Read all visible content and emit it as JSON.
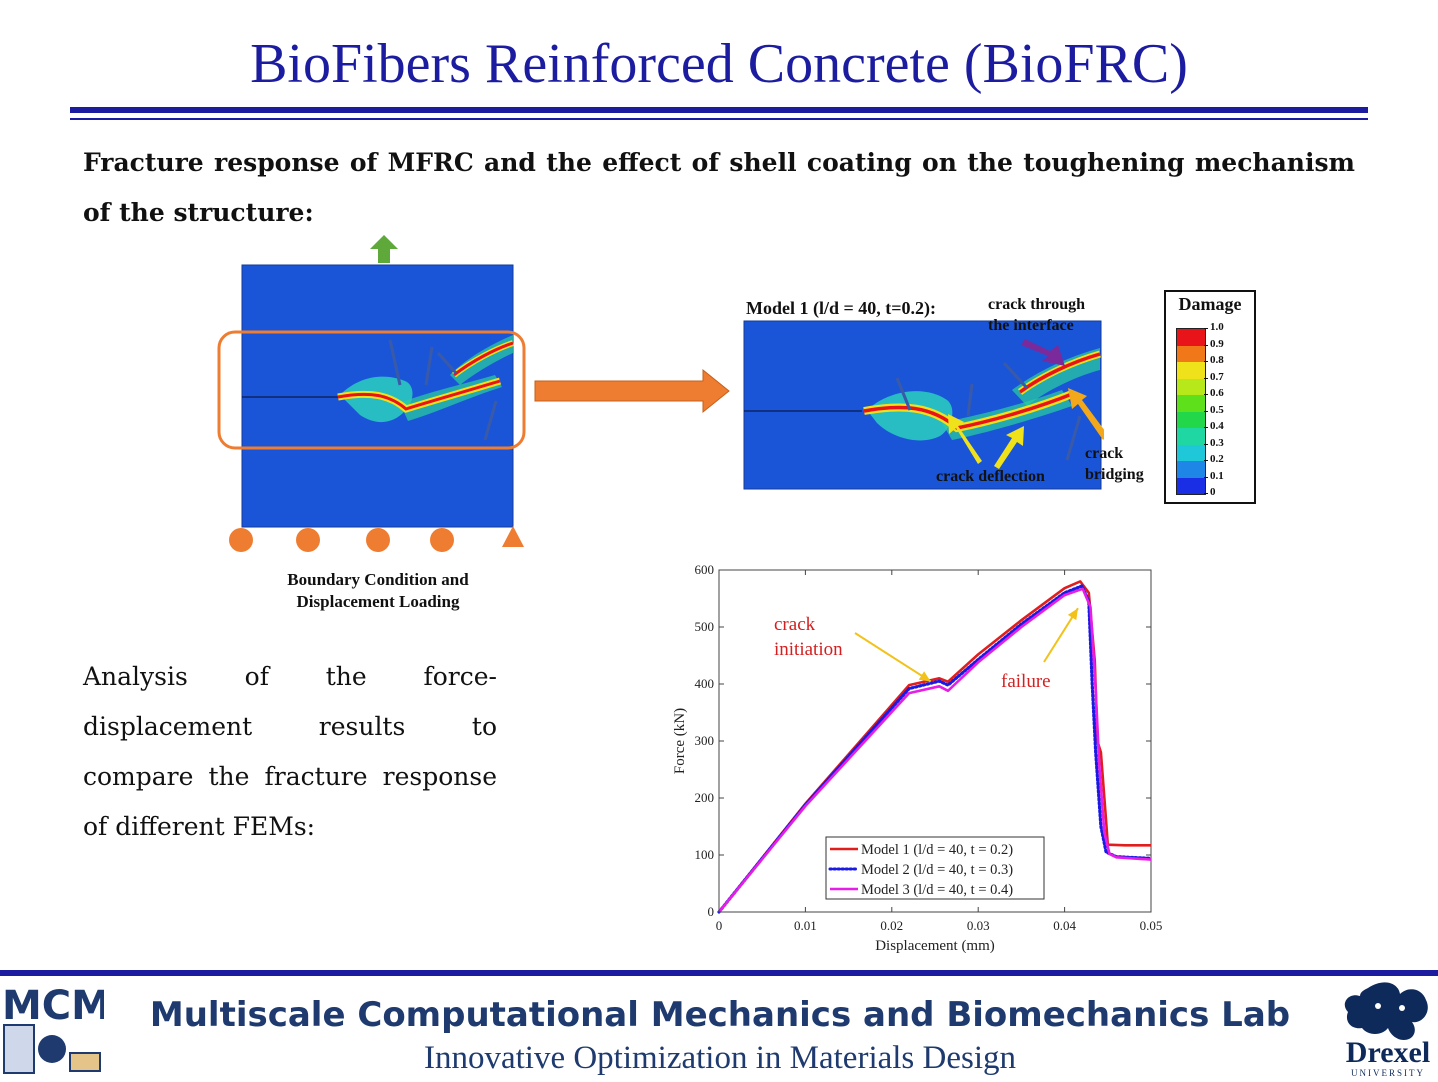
{
  "slide": {
    "title": "BioFibers Reinforced Concrete (BioFRC)",
    "intro_text": "Fracture response of MFRC and the effect of shell coating on the toughening mechanism of the structure:",
    "analysis_text": "Analysis of the force-displacement results to compare the fracture response of different FEMs:"
  },
  "figure_left": {
    "caption_line1": "Boundary Condition and",
    "caption_line2": "Displacement Loading"
  },
  "figure_damage": {
    "model_label": "Model 1 (l/d = 40, t=0.2):",
    "ann_crack_through_1": "crack through",
    "ann_crack_through_2": "the interface",
    "ann_deflection": "crack deflection",
    "ann_bridging_1": "crack",
    "ann_bridging_2": "bridging",
    "legend_title": "Damage",
    "legend_ticks": [
      "1.0",
      "0.9",
      "0.8",
      "0.7",
      "0.6",
      "0.5",
      "0.4",
      "0.3",
      "0.2",
      "0.1",
      "0"
    ],
    "legend_colors": [
      "#e8141a",
      "#f07818",
      "#f0e21a",
      "#b6e81a",
      "#5ee01a",
      "#22d84a",
      "#1ed7a2",
      "#1ec8d8",
      "#1e86e6",
      "#1a2ee6"
    ]
  },
  "chart_data": {
    "type": "line",
    "xlabel": "Displacement (mm)",
    "ylabel": "Force (kN)",
    "xlim": [
      0,
      0.05
    ],
    "ylim": [
      0,
      600
    ],
    "xticks": [
      "0",
      "0.01",
      "0.02",
      "0.03",
      "0.04",
      "0.05"
    ],
    "yticks": [
      "0",
      "100",
      "200",
      "300",
      "400",
      "500",
      "600"
    ],
    "legend_position": "bottom-left",
    "series": [
      {
        "name": "Model 1 (l/d = 40, t = 0.2)",
        "color": "#e01e1e",
        "style": "solid",
        "x": [
          0,
          0.01,
          0.022,
          0.0255,
          0.0265,
          0.03,
          0.035,
          0.04,
          0.0418,
          0.0428,
          0.0435,
          0.0438,
          0.0442,
          0.0448,
          0.045,
          0.047,
          0.05
        ],
        "y": [
          0,
          190,
          398,
          410,
          404,
          452,
          512,
          568,
          580,
          560,
          440,
          300,
          280,
          160,
          118,
          117,
          117
        ]
      },
      {
        "name": "Model 2 (l/d = 40, t = 0.3)",
        "color": "#1a1ae0",
        "style": "dotted",
        "x": [
          0,
          0.01,
          0.022,
          0.0255,
          0.0265,
          0.03,
          0.035,
          0.04,
          0.042,
          0.0428,
          0.0432,
          0.0436,
          0.0442,
          0.0448,
          0.046,
          0.05
        ],
        "y": [
          0,
          188,
          392,
          405,
          398,
          443,
          505,
          560,
          572,
          545,
          400,
          280,
          150,
          105,
          97,
          94
        ]
      },
      {
        "name": "Model 3 (l/d = 40, t = 0.4)",
        "color": "#e61ee6",
        "style": "solid",
        "x": [
          0,
          0.01,
          0.022,
          0.0255,
          0.0265,
          0.03,
          0.035,
          0.04,
          0.0421,
          0.043,
          0.0436,
          0.044,
          0.0446,
          0.0452,
          0.046,
          0.05
        ],
        "y": [
          0,
          186,
          384,
          396,
          388,
          438,
          500,
          556,
          567,
          535,
          390,
          260,
          140,
          102,
          96,
          92
        ]
      }
    ],
    "annotations": [
      {
        "text_line1": "crack",
        "text_line2": "initiation",
        "arrow_to_x": 0.0245,
        "arrow_to_y": 408
      },
      {
        "text_line1": "failure",
        "text_line2": "",
        "arrow_to_x": 0.0412,
        "arrow_to_y": 540
      }
    ]
  },
  "footer": {
    "lab_name": "Multiscale Computational Mechanics and Biomechanics Lab",
    "lab_subtitle": "Innovative Optimization in Materials Design",
    "left_logo_text": "MCMB",
    "right_logo_text": "Drexel",
    "right_logo_sub": "UNIVERSITY"
  }
}
